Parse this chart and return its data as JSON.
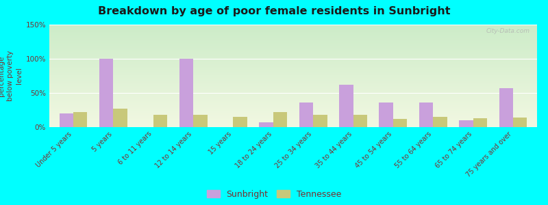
{
  "title": "Breakdown by age of poor female residents in Sunbright",
  "ylabel": "percentage\nbelow poverty\nlevel",
  "categories": [
    "Under 5 years",
    "5 years",
    "6 to 11 years",
    "12 to 14 years",
    "15 years",
    "18 to 24 years",
    "25 to 34 years",
    "35 to 44 years",
    "45 to 54 years",
    "55 to 64 years",
    "65 to 74 years",
    "75 years and over"
  ],
  "sunbright": [
    20,
    100,
    0,
    100,
    0,
    7,
    36,
    62,
    36,
    36,
    10,
    57
  ],
  "tennessee": [
    22,
    27,
    18,
    18,
    15,
    22,
    18,
    18,
    12,
    15,
    13,
    14
  ],
  "sunbright_color": "#c9a0dc",
  "tennessee_color": "#c8c87a",
  "bg_color": "#00ffff",
  "ylim": [
    0,
    150
  ],
  "yticks": [
    0,
    50,
    100,
    150
  ],
  "ytick_labels": [
    "0%",
    "50%",
    "100%",
    "150%"
  ],
  "bar_width": 0.35,
  "title_color": "#1a1a1a",
  "axis_color": "#7a3030",
  "legend_sunbright": "Sunbright",
  "legend_tennessee": "Tennessee",
  "watermark": "City-Data.com",
  "grad_bottom": "#f0f8e0",
  "grad_top": "#d8eed0"
}
